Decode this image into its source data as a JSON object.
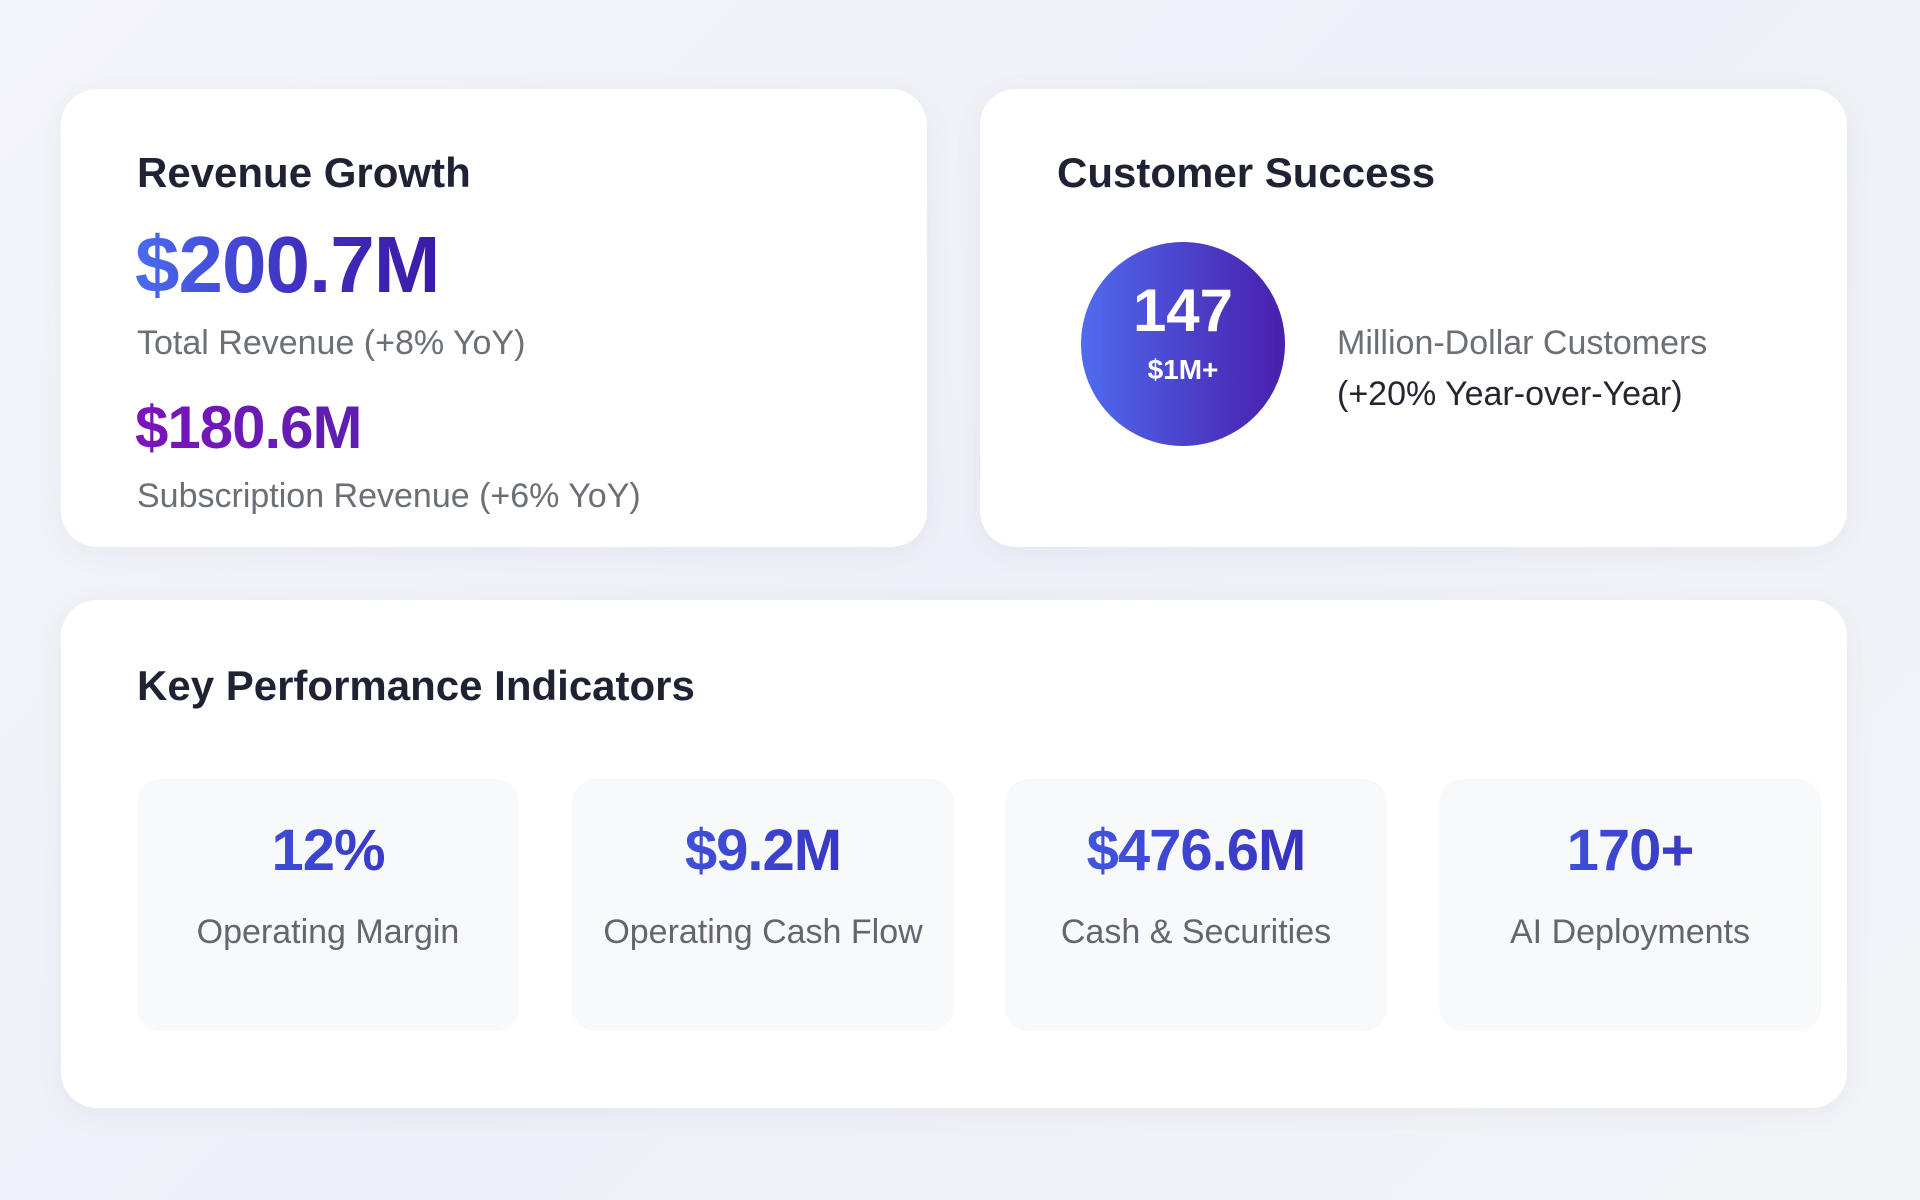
{
  "revenue": {
    "title": "Revenue Growth",
    "total_value": "$200.7M",
    "total_label": "Total Revenue (+8% YoY)",
    "subscription_value": "$180.6M",
    "subscription_label": "Subscription Revenue (+6% YoY)"
  },
  "customers": {
    "title": "Customer Success",
    "badge_number": "147",
    "badge_sub": "$1M+",
    "label_line1": "Million-Dollar Customers",
    "label_line2": "(+20% Year-over-Year)"
  },
  "kpis": {
    "title": "Key Performance Indicators",
    "items": [
      {
        "value": "12%",
        "label": "Operating Margin"
      },
      {
        "value": "$9.2M",
        "label": "Operating Cash Flow"
      },
      {
        "value": "$476.6M",
        "label": "Cash & Securities"
      },
      {
        "value": "170+",
        "label": "AI Deployments"
      }
    ]
  },
  "colors": {
    "accent_blue": "#4a6cf0",
    "accent_indigo": "#3b1aa8",
    "accent_purple": "#7c13bd"
  }
}
